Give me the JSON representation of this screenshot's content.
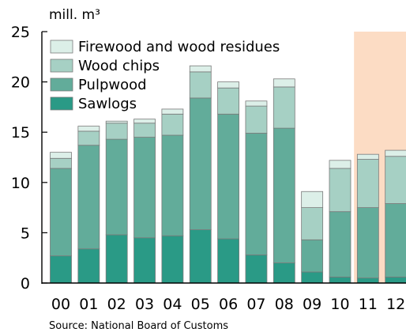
{
  "chart_data": {
    "type": "bar",
    "stacked": true,
    "unit_label": "mill. m³",
    "source": "Source: National Board of Customs",
    "categories": [
      "00",
      "01",
      "02",
      "03",
      "04",
      "05",
      "06",
      "07",
      "08",
      "09",
      "10",
      "11",
      "12"
    ],
    "ylim": [
      0,
      25
    ],
    "yticks": [
      0,
      5,
      10,
      15,
      20,
      25
    ],
    "grid": false,
    "legend_position": "top-left",
    "highlight": {
      "from": "11",
      "to": "12",
      "color": "#fcdcc4"
    },
    "series": [
      {
        "name": "Sawlogs",
        "color": "#2a9a86",
        "values": [
          2.7,
          3.4,
          4.8,
          4.5,
          4.7,
          5.3,
          4.4,
          2.8,
          2.0,
          1.1,
          0.6,
          0.5,
          0.6
        ]
      },
      {
        "name": "Pulpwood",
        "color": "#62ac9a",
        "values": [
          8.7,
          10.3,
          9.5,
          10.0,
          10.0,
          13.1,
          12.4,
          12.1,
          13.4,
          3.2,
          6.5,
          7.0,
          7.3
        ]
      },
      {
        "name": "Wood chips",
        "color": "#a6d0c4",
        "values": [
          1.0,
          1.4,
          1.6,
          1.4,
          2.1,
          2.6,
          2.6,
          2.7,
          4.1,
          3.2,
          4.3,
          4.8,
          4.7
        ]
      },
      {
        "name": "Firewood and wood residues",
        "color": "#dcefe8",
        "values": [
          0.6,
          0.5,
          0.2,
          0.4,
          0.5,
          0.6,
          0.6,
          0.5,
          0.8,
          1.6,
          0.8,
          0.5,
          0.6
        ]
      }
    ]
  }
}
